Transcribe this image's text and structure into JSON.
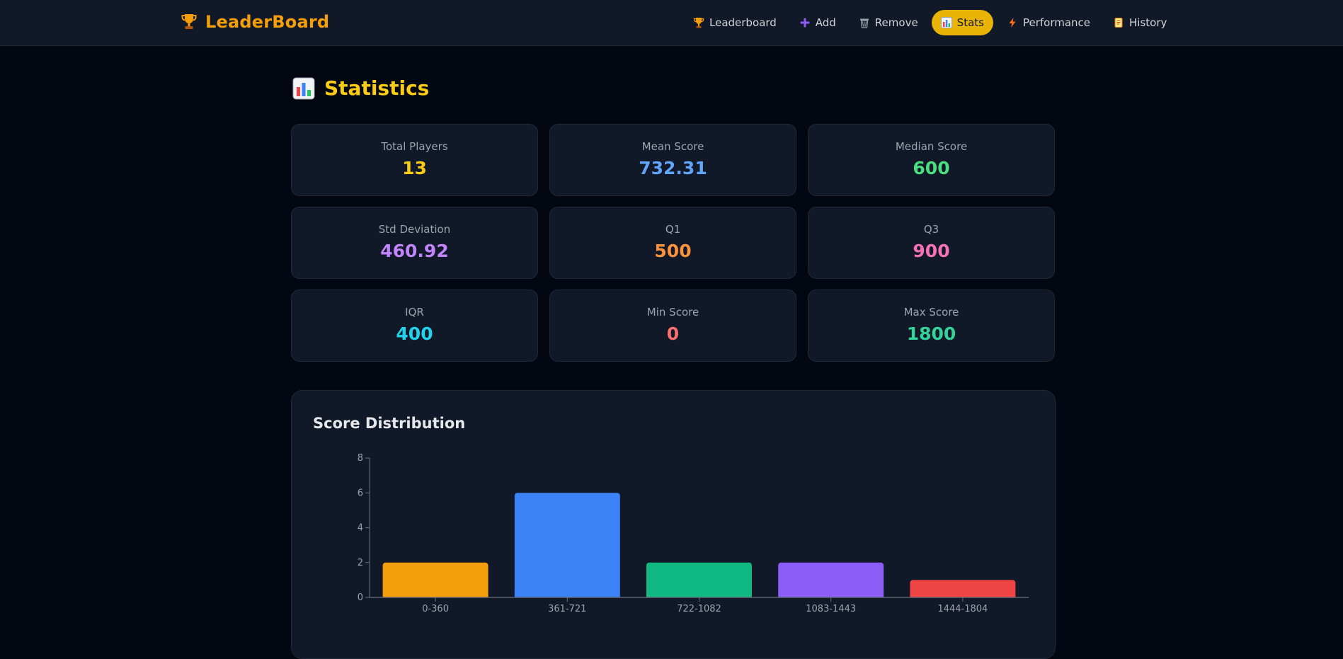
{
  "app": {
    "brand": "LeaderBoard",
    "brand_color": "#f59e0b"
  },
  "nav": {
    "items": [
      {
        "label": "Leaderboard",
        "icon": "trophy-icon",
        "active": false
      },
      {
        "label": "Add",
        "icon": "plus-icon",
        "active": false
      },
      {
        "label": "Remove",
        "icon": "trash-icon",
        "active": false
      },
      {
        "label": "Stats",
        "icon": "bar-chart-icon",
        "active": true
      },
      {
        "label": "Performance",
        "icon": "lightning-icon",
        "active": false
      },
      {
        "label": "History",
        "icon": "scroll-icon",
        "active": false
      }
    ],
    "active_color": "#eab308"
  },
  "page": {
    "title": "Statistics",
    "title_icon": "bar-chart-icon"
  },
  "stats": [
    {
      "label": "Total Players",
      "value": "13",
      "color": "#facc15"
    },
    {
      "label": "Mean Score",
      "value": "732.31",
      "color": "#60a5fa"
    },
    {
      "label": "Median Score",
      "value": "600",
      "color": "#4ade80"
    },
    {
      "label": "Std Deviation",
      "value": "460.92",
      "color": "#c084fc"
    },
    {
      "label": "Q1",
      "value": "500",
      "color": "#fb923c"
    },
    {
      "label": "Q3",
      "value": "900",
      "color": "#f472b6"
    },
    {
      "label": "IQR",
      "value": "400",
      "color": "#22d3ee"
    },
    {
      "label": "Min Score",
      "value": "0",
      "color": "#f87171"
    },
    {
      "label": "Max Score",
      "value": "1800",
      "color": "#34d399"
    }
  ],
  "chart_section": {
    "title": "Score Distribution"
  },
  "chart_data": {
    "type": "bar",
    "title": "",
    "xlabel": "",
    "ylabel": "",
    "categories": [
      "0-360",
      "361-721",
      "722-1082",
      "1083-1443",
      "1444-1804"
    ],
    "values": [
      2,
      6,
      2,
      2,
      1
    ],
    "colors": [
      "#f59e0b",
      "#3b82f6",
      "#10b981",
      "#8b5cf6",
      "#ef4444"
    ],
    "ylim": [
      0,
      8
    ],
    "yticks": [
      0,
      2,
      4,
      6,
      8
    ],
    "grid": false,
    "legend": "none"
  }
}
